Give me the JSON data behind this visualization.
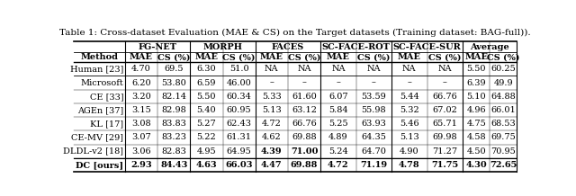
{
  "title": "Table 1: Cross-dataset Evaluation (MAE & CS) on the Target datasets (Training dataset: BAG-full)).",
  "col_groups": [
    "FG-NET",
    "MORPH",
    "FACES",
    "SC-FACE-ROT",
    "SC-FACE-SUR",
    "Average"
  ],
  "sub_cols": [
    "MAE",
    "CS (%)"
  ],
  "methods": [
    "Human [23]",
    "Microsoft",
    "CE [33]",
    "AGEn [37]",
    "KL [17]",
    "CE-MV [29]",
    "DLDL-v2 [18]",
    "DC [ours]"
  ],
  "data": [
    [
      "4.70",
      "69.5",
      "6.30",
      "51.0",
      "NA",
      "NA",
      "NA",
      "NA",
      "NA",
      "NA",
      "5.50",
      "60.25"
    ],
    [
      "6.20",
      "53.80",
      "6.59",
      "46.00",
      "–",
      "–",
      "–",
      "–",
      "–",
      "–",
      "6.39",
      "49.9"
    ],
    [
      "3.20",
      "82.14",
      "5.50",
      "60.34",
      "5.33",
      "61.60",
      "6.07",
      "53.59",
      "5.44",
      "66.76",
      "5.10",
      "64.88"
    ],
    [
      "3.15",
      "82.98",
      "5.40",
      "60.95",
      "5.13",
      "63.12",
      "5.84",
      "55.98",
      "5.32",
      "67.02",
      "4.96",
      "66.01"
    ],
    [
      "3.08",
      "83.83",
      "5.27",
      "62.43",
      "4.72",
      "66.76",
      "5.25",
      "63.93",
      "5.46",
      "65.71",
      "4.75",
      "68.53"
    ],
    [
      "3.07",
      "83.23",
      "5.22",
      "61.31",
      "4.62",
      "69.88",
      "4.89",
      "64.35",
      "5.13",
      "69.98",
      "4.58",
      "69.75"
    ],
    [
      "3.06",
      "82.83",
      "4.95",
      "64.95",
      "4.39",
      "71.00",
      "5.24",
      "64.70",
      "4.90",
      "71.27",
      "4.50",
      "70.95"
    ],
    [
      "2.93",
      "84.43",
      "4.63",
      "66.03",
      "4.47",
      "69.88",
      "4.72",
      "71.19",
      "4.78",
      "71.75",
      "4.30",
      "72.65"
    ]
  ],
  "bold_method_rows": [
    7
  ],
  "bold_cells": {
    "6": [
      4,
      5
    ],
    "7": [
      0,
      1,
      2,
      3,
      6,
      7,
      8,
      9,
      10,
      11
    ]
  },
  "background_color": "#ffffff",
  "font_size": 7.0,
  "title_font_size": 7.5
}
